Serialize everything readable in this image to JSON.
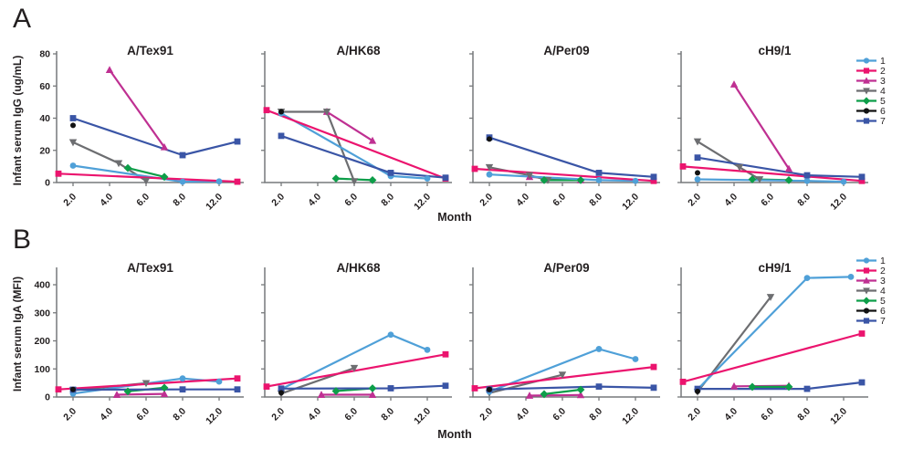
{
  "figure": {
    "section_a_label": "A",
    "section_b_label": "B",
    "xlabel": "Month",
    "xtick_labels": [
      "2.0",
      "4.0",
      "6.0",
      "8.0",
      "12.0"
    ],
    "axis_color": "#77787B",
    "legend_position": "right",
    "legend": [
      {
        "id": "1",
        "label": "1",
        "color": "#4FA0D8",
        "marker": "circle"
      },
      {
        "id": "2",
        "label": "2",
        "color": "#EB146E",
        "marker": "square"
      },
      {
        "id": "3",
        "label": "3",
        "color": "#BF3092",
        "marker": "triangle"
      },
      {
        "id": "4",
        "label": "4",
        "color": "#6D6E71",
        "marker": "triangle-down"
      },
      {
        "id": "5",
        "label": "5",
        "color": "#0D9E49",
        "marker": "diamond"
      },
      {
        "id": "6",
        "label": "6",
        "color": "#121212",
        "marker": "circle"
      },
      {
        "id": "7",
        "label": "7",
        "color": "#3A55A6",
        "marker": "square"
      }
    ]
  },
  "chart_data": [
    {
      "type": "line",
      "row": "A",
      "ylabel": "Infant serum IgG (ug/mL)",
      "xlabel": "Month",
      "ylim": [
        0,
        80
      ],
      "yticks": [
        0,
        20,
        40,
        60,
        80
      ],
      "xticks": [
        2,
        4,
        6,
        8,
        12
      ],
      "panels": [
        {
          "title": "A/Tex91",
          "series": [
            {
              "id": "1",
              "points": [
                [
                  2,
                  10.5
                ],
                [
                  8,
                  0.5
                ],
                [
                  12,
                  0.7
                ]
              ]
            },
            {
              "id": "2",
              "points": [
                [
                  1.2,
                  5.5
                ],
                [
                  13,
                  0.5
                ]
              ]
            },
            {
              "id": "3",
              "points": [
                [
                  4,
                  70
                ],
                [
                  7,
                  22
                ]
              ]
            },
            {
              "id": "4",
              "points": [
                [
                  2,
                  25
                ],
                [
                  4.5,
                  12
                ],
                [
                  6,
                  1
                ]
              ]
            },
            {
              "id": "5",
              "points": [
                [
                  5,
                  9
                ],
                [
                  7,
                  3.5
                ]
              ]
            },
            {
              "id": "6",
              "points": [
                [
                  2,
                  35.5
                ]
              ]
            },
            {
              "id": "7",
              "points": [
                [
                  2,
                  40
                ],
                [
                  8,
                  17
                ],
                [
                  13,
                  25.5
                ]
              ]
            }
          ]
        },
        {
          "title": "A/HK68",
          "series": [
            {
              "id": "1",
              "points": [
                [
                  2,
                  43
                ],
                [
                  8,
                  4
                ],
                [
                  12,
                  2.5
                ]
              ]
            },
            {
              "id": "2",
              "points": [
                [
                  1.2,
                  45
                ],
                [
                  13,
                  2.5
                ]
              ]
            },
            {
              "id": "3",
              "points": [
                [
                  4.5,
                  44
                ],
                [
                  7,
                  26
                ]
              ]
            },
            {
              "id": "4",
              "points": [
                [
                  2,
                  44
                ],
                [
                  4.5,
                  44
                ],
                [
                  6,
                  0.8
                ]
              ]
            },
            {
              "id": "5",
              "points": [
                [
                  5,
                  2.5
                ],
                [
                  7,
                  1.5
                ]
              ]
            },
            {
              "id": "6",
              "points": [
                [
                  2,
                  44
                ]
              ]
            },
            {
              "id": "7",
              "points": [
                [
                  2,
                  29
                ],
                [
                  8,
                  6
                ],
                [
                  13,
                  3
                ]
              ]
            }
          ]
        },
        {
          "title": "A/Per09",
          "series": [
            {
              "id": "1",
              "points": [
                [
                  2,
                  5
                ],
                [
                  8,
                  1.5
                ],
                [
                  12,
                  1
                ]
              ]
            },
            {
              "id": "2",
              "points": [
                [
                  1.2,
                  8.5
                ],
                [
                  13,
                  1
                ]
              ]
            },
            {
              "id": "3",
              "points": [
                [
                  4.2,
                  3.5
                ],
                [
                  7,
                  1.5
                ]
              ]
            },
            {
              "id": "4",
              "points": [
                [
                  2,
                  9.5
                ],
                [
                  4.2,
                  4.5
                ],
                [
                  5.2,
                  1.5
                ]
              ]
            },
            {
              "id": "5",
              "points": [
                [
                  5,
                  1.5
                ],
                [
                  7,
                  1.5
                ]
              ]
            },
            {
              "id": "6",
              "points": [
                [
                  2,
                  27
                ]
              ]
            },
            {
              "id": "7",
              "points": [
                [
                  2,
                  28
                ],
                [
                  8,
                  6
                ],
                [
                  13,
                  3.5
                ]
              ]
            }
          ]
        },
        {
          "title": "cH9/1",
          "series": [
            {
              "id": "1",
              "points": [
                [
                  2,
                  2
                ],
                [
                  8,
                  1
                ],
                [
                  12,
                  0.5
                ]
              ]
            },
            {
              "id": "2",
              "points": [
                [
                  1.2,
                  10
                ],
                [
                  13,
                  1
                ]
              ]
            },
            {
              "id": "3",
              "points": [
                [
                  4,
                  61
                ],
                [
                  7,
                  8.5
                ]
              ]
            },
            {
              "id": "4",
              "points": [
                [
                  2,
                  25.5
                ],
                [
                  4.3,
                  9.5
                ],
                [
                  5.4,
                  2
                ]
              ]
            },
            {
              "id": "5",
              "points": [
                [
                  5,
                  2
                ],
                [
                  7,
                  1.5
                ]
              ]
            },
            {
              "id": "6",
              "points": [
                [
                  2,
                  6
                ]
              ]
            },
            {
              "id": "7",
              "points": [
                [
                  2,
                  15.5
                ],
                [
                  8,
                  4.5
                ],
                [
                  13,
                  3.5
                ]
              ]
            }
          ]
        }
      ]
    },
    {
      "type": "line",
      "row": "B",
      "ylabel": "Infant serum IgA (MFI)",
      "xlabel": "Month",
      "ylim": [
        0,
        440
      ],
      "yticks": [
        0,
        100,
        200,
        300,
        400
      ],
      "xticks": [
        2,
        4,
        6,
        8,
        12
      ],
      "panels": [
        {
          "title": "A/Tex91",
          "series": [
            {
              "id": "1",
              "points": [
                [
                  2,
                  12
                ],
                [
                  8,
                  66
                ],
                [
                  12,
                  55
                ]
              ]
            },
            {
              "id": "2",
              "points": [
                [
                  1.2,
                  27
                ],
                [
                  13,
                  66
                ]
              ]
            },
            {
              "id": "3",
              "points": [
                [
                  4.4,
                  8
                ],
                [
                  7,
                  11
                ]
              ]
            },
            {
              "id": "4",
              "points": [
                [
                  2,
                  24
                ],
                [
                  6,
                  49
                ]
              ]
            },
            {
              "id": "5",
              "points": [
                [
                  5,
                  20
                ],
                [
                  7,
                  33
                ]
              ]
            },
            {
              "id": "6",
              "points": [
                [
                  2,
                  27
                ]
              ]
            },
            {
              "id": "7",
              "points": [
                [
                  2,
                  26
                ],
                [
                  8,
                  27
                ],
                [
                  13,
                  27
                ]
              ]
            }
          ]
        },
        {
          "title": "A/HK68",
          "series": [
            {
              "id": "1",
              "points": [
                [
                  2,
                  28
                ],
                [
                  8,
                  222
                ],
                [
                  12,
                  168
                ]
              ]
            },
            {
              "id": "2",
              "points": [
                [
                  1.2,
                  37
                ],
                [
                  13,
                  152
                ]
              ]
            },
            {
              "id": "3",
              "points": [
                [
                  4.2,
                  8
                ],
                [
                  7,
                  8
                ]
              ]
            },
            {
              "id": "4",
              "points": [
                [
                  2,
                  12
                ],
                [
                  6,
                  103
                ]
              ]
            },
            {
              "id": "5",
              "points": [
                [
                  5,
                  21
                ],
                [
                  7,
                  31
                ]
              ]
            },
            {
              "id": "6",
              "points": [
                [
                  2,
                  15
                ]
              ]
            },
            {
              "id": "7",
              "points": [
                [
                  2,
                  30
                ],
                [
                  8,
                  31
                ],
                [
                  13,
                  40
                ]
              ]
            }
          ]
        },
        {
          "title": "A/Per09",
          "series": [
            {
              "id": "1",
              "points": [
                [
                  2,
                  19
                ],
                [
                  8,
                  171
                ],
                [
                  12,
                  135
                ]
              ]
            },
            {
              "id": "2",
              "points": [
                [
                  1.2,
                  31
                ],
                [
                  13,
                  107
                ]
              ]
            },
            {
              "id": "3",
              "points": [
                [
                  4.2,
                  5
                ],
                [
                  7,
                  7
                ]
              ]
            },
            {
              "id": "4",
              "points": [
                [
                  2,
                  14
                ],
                [
                  6,
                  79
                ]
              ]
            },
            {
              "id": "5",
              "points": [
                [
                  5,
                  10
                ],
                [
                  7,
                  26
                ]
              ]
            },
            {
              "id": "6",
              "points": [
                [
                  2,
                  27
                ]
              ]
            },
            {
              "id": "7",
              "points": [
                [
                  2,
                  27
                ],
                [
                  8,
                  37
                ],
                [
                  13,
                  33
                ]
              ]
            }
          ]
        },
        {
          "title": "cH9/1",
          "series": [
            {
              "id": "1",
              "points": [
                [
                  2,
                  27
                ],
                [
                  8,
                  424
                ],
                [
                  12.4,
                  428
                ]
              ]
            },
            {
              "id": "2",
              "points": [
                [
                  1.2,
                  54
                ],
                [
                  13,
                  226
                ]
              ]
            },
            {
              "id": "3",
              "points": [
                [
                  4,
                  38
                ],
                [
                  7,
                  40
                ]
              ]
            },
            {
              "id": "4",
              "points": [
                [
                  2,
                  18
                ],
                [
                  6,
                  356
                ]
              ]
            },
            {
              "id": "5",
              "points": [
                [
                  5,
                  36
                ],
                [
                  7,
                  36
                ]
              ]
            },
            {
              "id": "6",
              "points": [
                [
                  2,
                  20
                ]
              ]
            },
            {
              "id": "7",
              "points": [
                [
                  2,
                  29
                ],
                [
                  8,
                  29
                ],
                [
                  13,
                  52
                ]
              ]
            }
          ]
        }
      ]
    }
  ]
}
